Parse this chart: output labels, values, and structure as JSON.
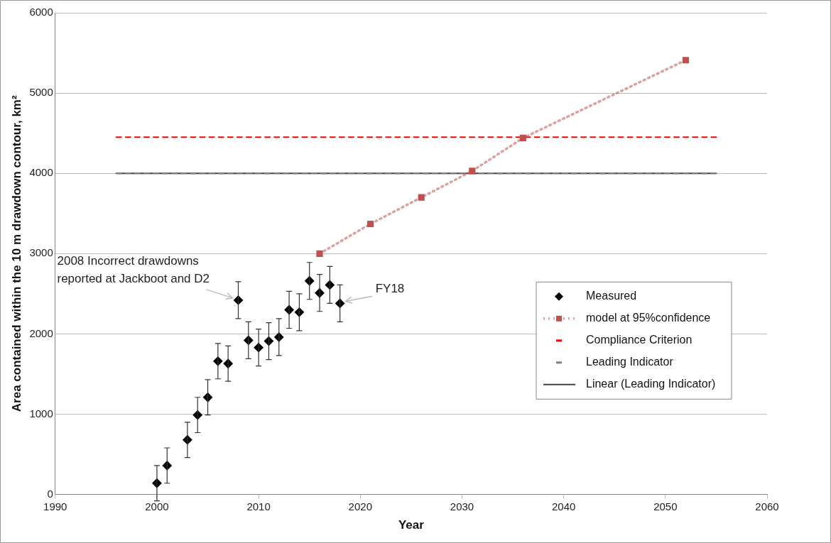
{
  "chart_data": {
    "type": "scatter",
    "xlabel": "Year",
    "ylabel": "Area contained within the 10 m drawdown contour, km²",
    "xlim": [
      1990,
      2060
    ],
    "xticks": [
      1990,
      2000,
      2010,
      2020,
      2030,
      2040,
      2050,
      2060
    ],
    "ylim": [
      0,
      6000
    ],
    "yticks": [
      0,
      1000,
      2000,
      3000,
      4000,
      5000,
      6000
    ],
    "grid": "y",
    "legend": "right",
    "series": [
      {
        "name": "Measured",
        "color": "#000000",
        "marker": "diamond",
        "x": [
          2000,
          2001,
          2003,
          2004,
          2005,
          2006,
          2007,
          2008,
          2009,
          2010,
          2011,
          2012,
          2013,
          2014,
          2015,
          2016,
          2017,
          2018
        ],
        "values": [
          140,
          360,
          680,
          990,
          1210,
          1660,
          1630,
          2420,
          1920,
          1830,
          1910,
          1960,
          2300,
          2270,
          2660,
          2510,
          2610,
          2380
        ],
        "errors": [
          220,
          220,
          220,
          220,
          220,
          220,
          220,
          230,
          230,
          230,
          230,
          230,
          230,
          230,
          230,
          230,
          230,
          230
        ]
      },
      {
        "name": "model at 95%confidence",
        "type": "line",
        "color": "#c0504d",
        "marker": "square",
        "line_style": "dotted",
        "x": [
          2016,
          2021,
          2026,
          2031,
          2036,
          2052
        ],
        "values": [
          3000,
          3370,
          3700,
          4030,
          4440,
          5410
        ]
      },
      {
        "name": "Compliance Criterion",
        "type": "line",
        "color": "#ff0000",
        "marker": "none",
        "line_style": "dashed",
        "x": [
          1996,
          2055
        ],
        "values": [
          4450,
          4450
        ]
      },
      {
        "name": "Leading Indicator",
        "type": "line",
        "color": "#7f7f7f",
        "marker": "none",
        "line_style": "dashed",
        "x": [
          1996,
          2055
        ],
        "values": [
          4000,
          4000
        ]
      },
      {
        "name": "Linear (Leading Indicator)",
        "type": "line",
        "color": "#404040",
        "marker": "none",
        "line_style": "solid",
        "x": [
          1996,
          2055
        ],
        "values": [
          4000,
          4000
        ]
      }
    ],
    "annotations": [
      {
        "text": "2008 Incorrect drawdowns reported at Jackboot and D2",
        "x": 2008,
        "y": 2420
      },
      {
        "text": "FY18",
        "x": 2018,
        "y": 2380
      }
    ]
  }
}
